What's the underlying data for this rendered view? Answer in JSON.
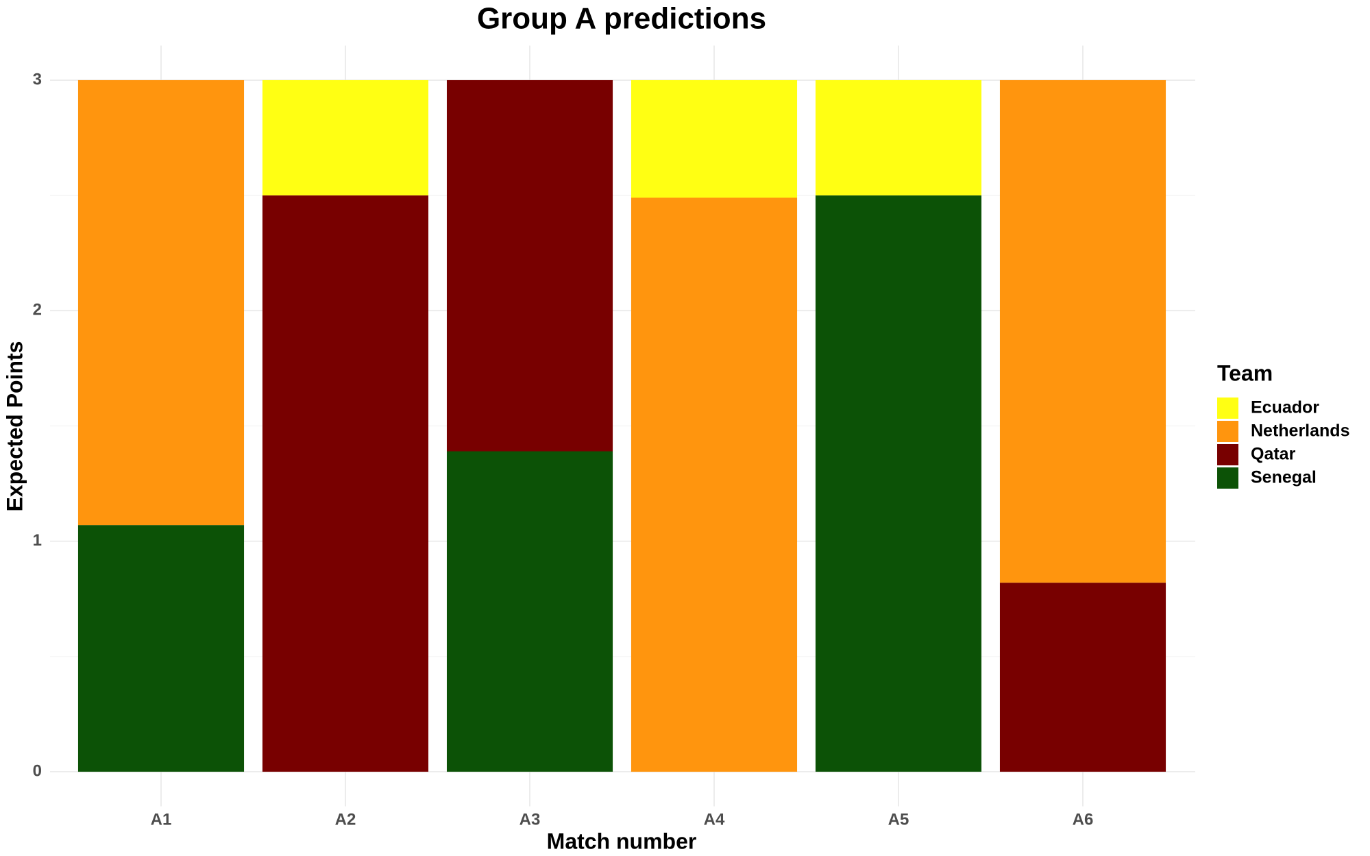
{
  "chart_data": {
    "type": "stacked_bar",
    "title": "Group A predictions",
    "x_label": "Match number",
    "y_label": "Expected Points",
    "categories": [
      "A1",
      "A2",
      "A3",
      "A4",
      "A5",
      "A6"
    ],
    "series": [
      {
        "name": "Ecuador",
        "color": "#ffff13",
        "values": [
          0,
          0.5,
          0,
          0.51,
          0.5,
          0
        ]
      },
      {
        "name": "Netherlands",
        "color": "#ff950e",
        "values": [
          1.93,
          0,
          0,
          2.49,
          0,
          2.18
        ]
      },
      {
        "name": "Qatar",
        "color": "#780000",
        "values": [
          0,
          2.5,
          1.61,
          0,
          0,
          0.82
        ]
      },
      {
        "name": "Senegal",
        "color": "#0c5206",
        "values": [
          1.07,
          0,
          1.39,
          0,
          2.5,
          0
        ]
      }
    ],
    "legend_title": "Team",
    "legend_position": "right",
    "ylim": [
      -0.15,
      3.15
    ],
    "yticks": [
      0,
      1,
      2,
      3
    ],
    "minor_yticks": [
      0.5,
      1.5,
      2.5
    ],
    "grid": true
  }
}
